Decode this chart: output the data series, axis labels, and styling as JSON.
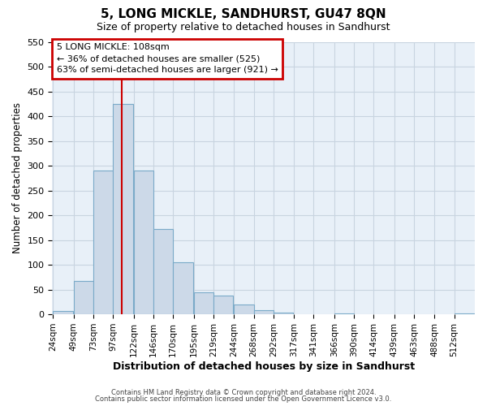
{
  "title": "5, LONG MICKLE, SANDHURST, GU47 8QN",
  "subtitle": "Size of property relative to detached houses in Sandhurst",
  "xlabel": "Distribution of detached houses by size in Sandhurst",
  "ylabel": "Number of detached properties",
  "bar_labels": [
    "24sqm",
    "49sqm",
    "73sqm",
    "97sqm",
    "122sqm",
    "146sqm",
    "170sqm",
    "195sqm",
    "219sqm",
    "244sqm",
    "268sqm",
    "292sqm",
    "317sqm",
    "341sqm",
    "366sqm",
    "390sqm",
    "414sqm",
    "439sqm",
    "463sqm",
    "488sqm",
    "512sqm"
  ],
  "bar_values": [
    7,
    68,
    291,
    425,
    291,
    173,
    105,
    44,
    38,
    20,
    8,
    3,
    0,
    0,
    1,
    0,
    0,
    0,
    0,
    0,
    2
  ],
  "bar_color": "#ccd9e8",
  "bar_edge_color": "#7aaac8",
  "property_line_label": "5 LONG MICKLE: 108sqm",
  "annotation_line1": "← 36% of detached houses are smaller (525)",
  "annotation_line2": "63% of semi-detached houses are larger (921) →",
  "ylim": [
    0,
    550
  ],
  "yticks": [
    0,
    50,
    100,
    150,
    200,
    250,
    300,
    350,
    400,
    450,
    500,
    550
  ],
  "footer1": "Contains HM Land Registry data © Crown copyright and database right 2024.",
  "footer2": "Contains public sector information licensed under the Open Government Licence v3.0.",
  "grid_color": "#c8d4e0",
  "plot_bg_color": "#e8f0f8",
  "fig_bg_color": "#ffffff",
  "annotation_box_color": "#cc0000",
  "property_line_color": "#cc0000",
  "bin_width": 24,
  "property_sqm": 108
}
